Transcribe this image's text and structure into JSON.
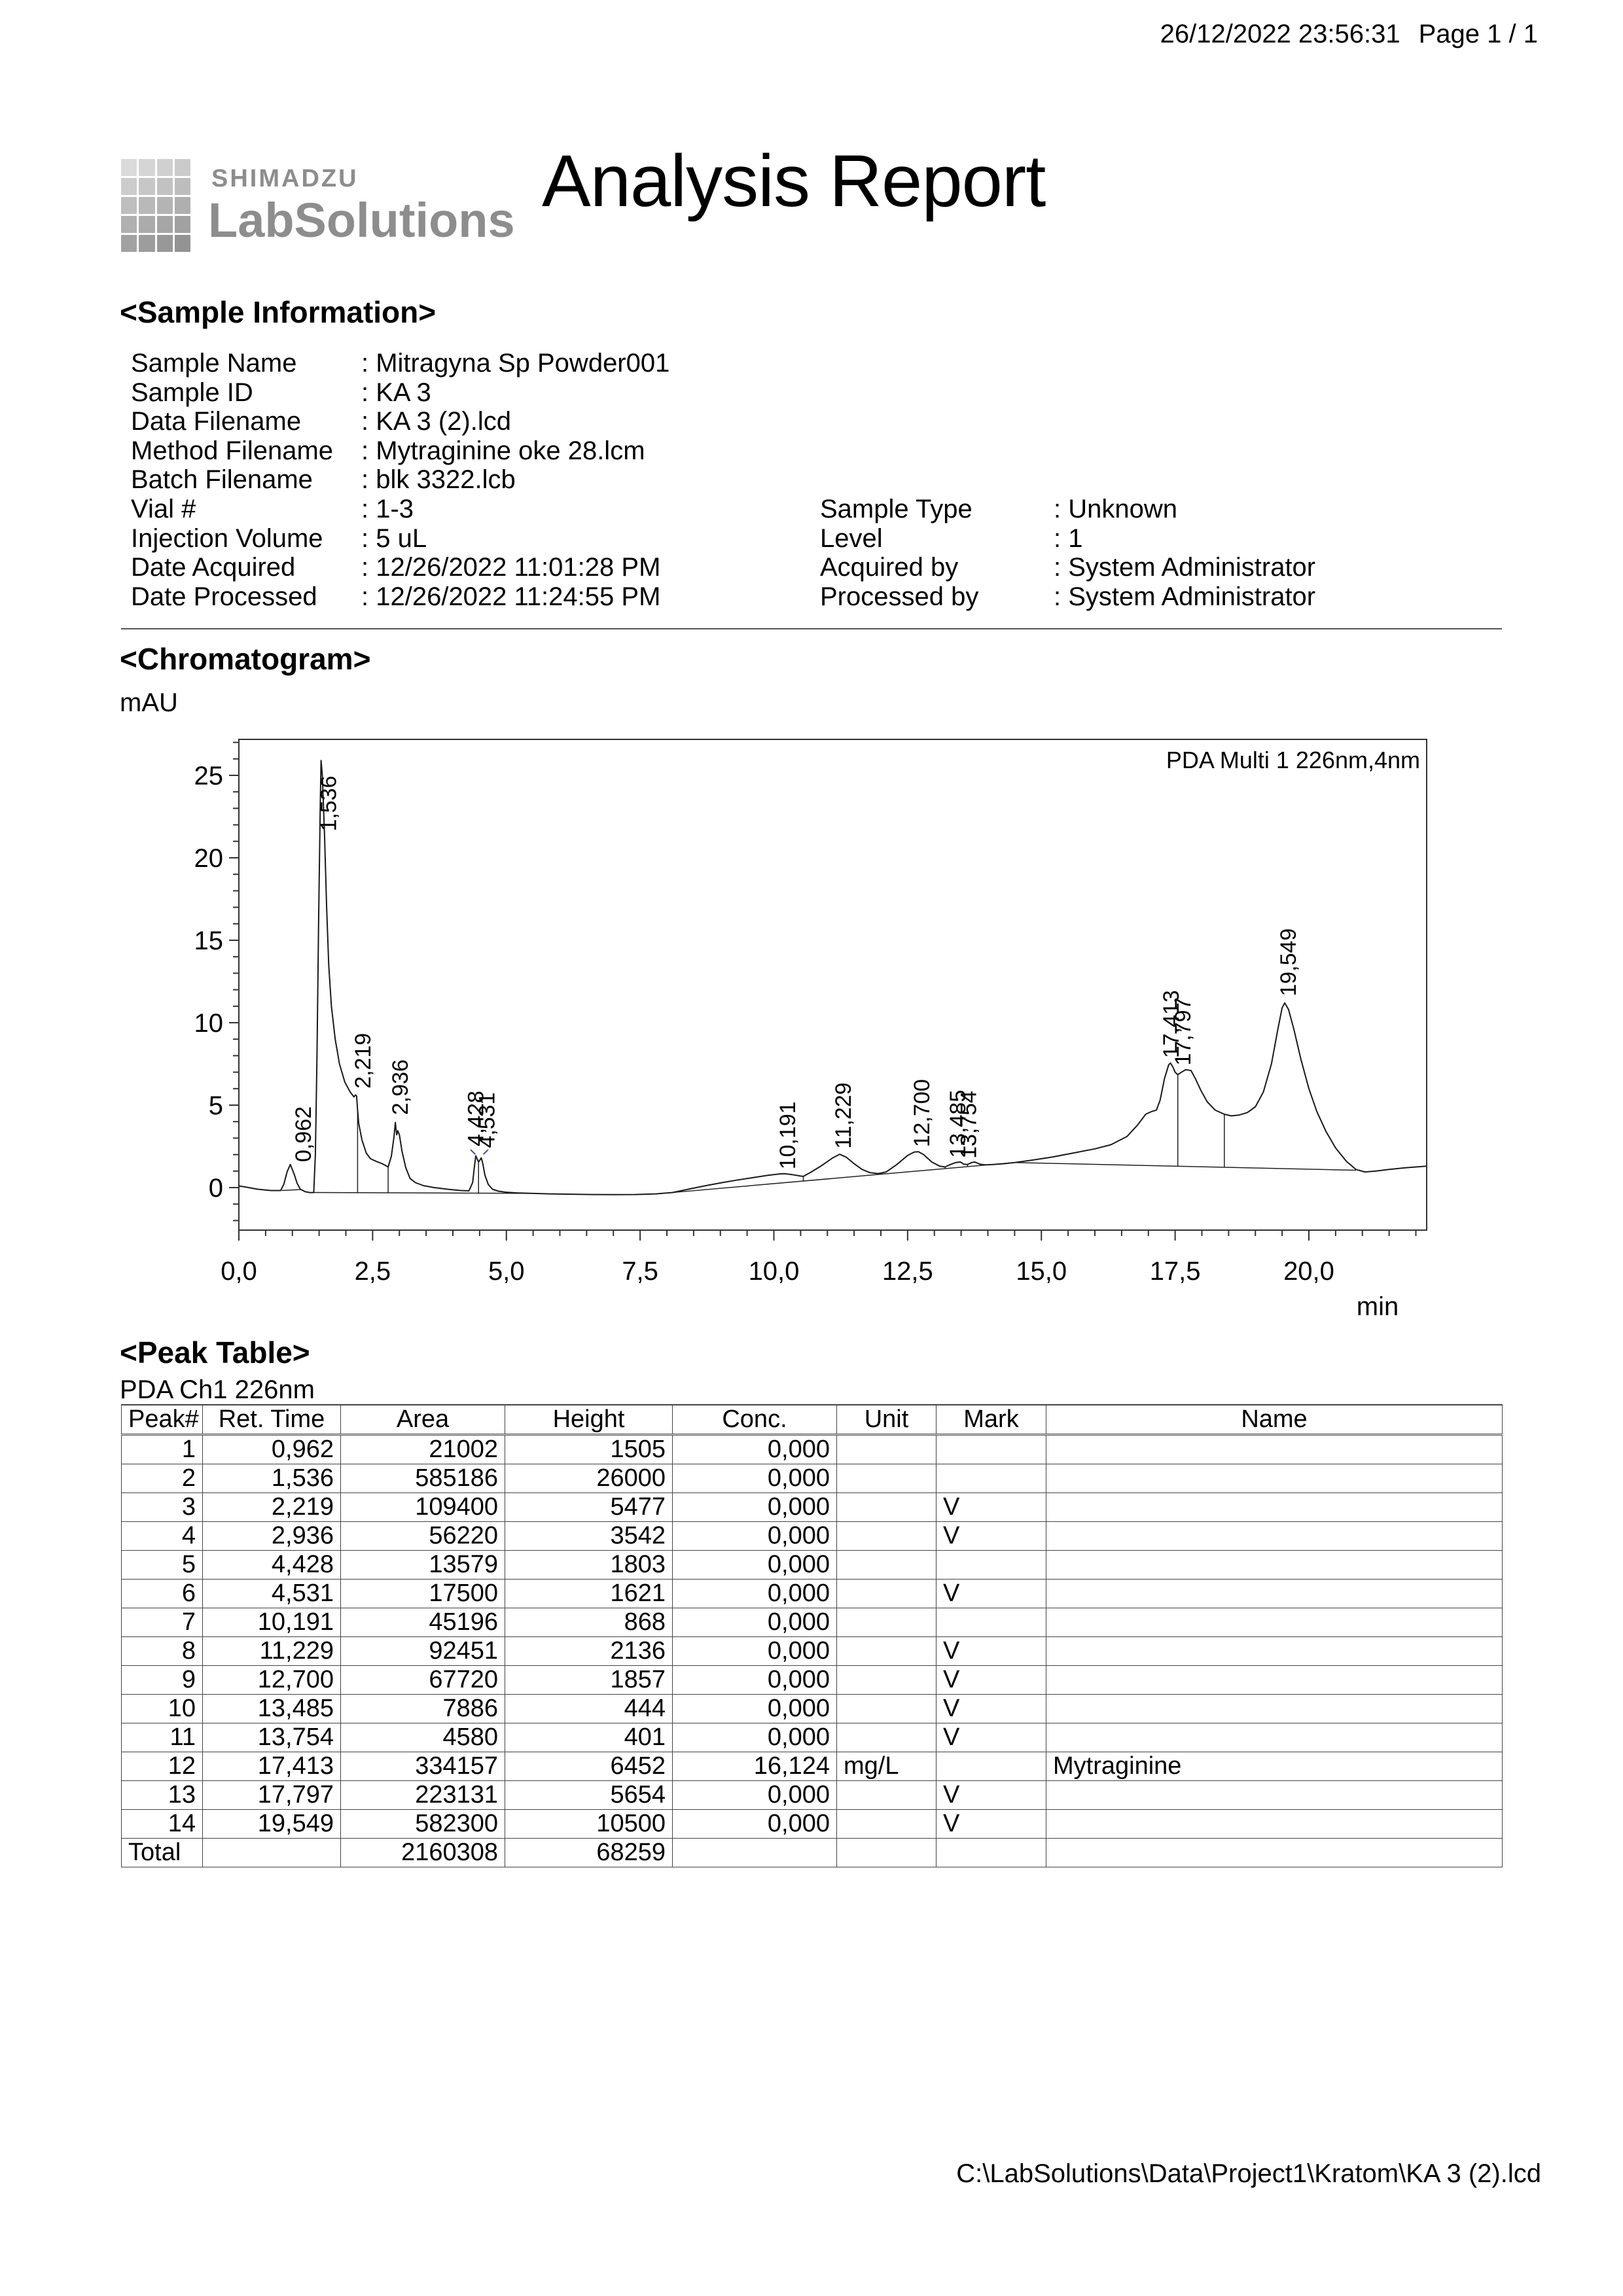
{
  "page": {
    "datetime": "26/12/2022 23:56:31",
    "page_label": "Page 1 / 1"
  },
  "brand": {
    "company": "SHIMADZU",
    "product": "LabSolutions",
    "title": "Analysis Report"
  },
  "sample_information": {
    "heading": "<Sample Information>",
    "left": [
      {
        "label": "Sample Name",
        "value": "Mitragyna Sp Powder001"
      },
      {
        "label": "Sample ID",
        "value": "KA 3"
      },
      {
        "label": "Data Filename",
        "value": "KA 3 (2).lcd"
      },
      {
        "label": "Method Filename",
        "value": "Mytraginine oke 28.lcm"
      },
      {
        "label": "Batch Filename",
        "value": "blk 3322.lcb"
      },
      {
        "label": "Vial #",
        "value": "1-3"
      },
      {
        "label": "Injection Volume",
        "value": "5 uL"
      },
      {
        "label": "Date Acquired",
        "value": "12/26/2022 11:01:28 PM"
      },
      {
        "label": "Date Processed",
        "value": "12/26/2022 11:24:55 PM"
      }
    ],
    "right": [
      {
        "label": "Sample Type",
        "value": "Unknown"
      },
      {
        "label": "Level",
        "value": "1"
      },
      {
        "label": "Acquired by",
        "value": "System Administrator"
      },
      {
        "label": "Processed by",
        "value": "System Administrator"
      }
    ]
  },
  "chromatogram": {
    "heading": "<Chromatogram>",
    "y_unit": "mAU",
    "x_unit": "min",
    "trace_label": "PDA Multi 1 226nm,4nm"
  },
  "chart_data": {
    "type": "line",
    "title": "PDA Multi 1 226nm,4nm",
    "xlabel": "min",
    "ylabel": "mAU",
    "xlim": [
      0,
      22.2
    ],
    "ylim": [
      -2.58,
      27.2
    ],
    "x_ticks": [
      {
        "t": 0,
        "label": "0,0"
      },
      {
        "t": 2.5,
        "label": "2,5"
      },
      {
        "t": 5,
        "label": "5,0"
      },
      {
        "t": 7.5,
        "label": "7,5"
      },
      {
        "t": 10,
        "label": "10,0"
      },
      {
        "t": 12.5,
        "label": "12,5"
      },
      {
        "t": 15,
        "label": "15,0"
      },
      {
        "t": 17.5,
        "label": "17,5"
      },
      {
        "t": 20,
        "label": "20,0"
      }
    ],
    "x_minor_step": 0.5,
    "y_ticks": [
      {
        "v": 0,
        "label": "0"
      },
      {
        "v": 5,
        "label": "5"
      },
      {
        "v": 10,
        "label": "10"
      },
      {
        "v": 15,
        "label": "15"
      },
      {
        "v": 20,
        "label": "20"
      },
      {
        "v": 25,
        "label": "25"
      }
    ],
    "y_minor_step": 1,
    "peaks": [
      {
        "ret_time": 0.962,
        "apex_mau": 1.4,
        "label": "0,962"
      },
      {
        "ret_time": 1.536,
        "apex_mau": 25.9,
        "label": "1,536"
      },
      {
        "ret_time": 2.219,
        "apex_mau": 5.5,
        "label": "2,219"
      },
      {
        "ret_time": 2.936,
        "apex_mau": 3.9,
        "label": "2,936"
      },
      {
        "ret_time": 4.428,
        "apex_mau": 1.93,
        "label": "4,428"
      },
      {
        "ret_time": 4.531,
        "apex_mau": 1.8,
        "label": "4,531"
      },
      {
        "ret_time": 10.191,
        "apex_mau": 0.84,
        "label": "10,191"
      },
      {
        "ret_time": 11.229,
        "apex_mau": 2.02,
        "label": "11,229"
      },
      {
        "ret_time": 12.7,
        "apex_mau": 2.18,
        "label": "12,700"
      },
      {
        "ret_time": 13.485,
        "apex_mau": 1.55,
        "label": "13,485"
      },
      {
        "ret_time": 13.754,
        "apex_mau": 1.55,
        "label": "13,754"
      },
      {
        "ret_time": 17.413,
        "apex_mau": 7.55,
        "label": "17,413"
      },
      {
        "ret_time": 17.797,
        "apex_mau": 7.1,
        "label": "17,797"
      },
      {
        "ret_time": 19.549,
        "apex_mau": 11.2,
        "label": "19,549"
      }
    ],
    "peak_labels": [
      {
        "t": 1.2,
        "v": 1.55,
        "text": "0,962"
      },
      {
        "t": 1.67,
        "v": 21.6,
        "text": "1,536"
      },
      {
        "t": 2.31,
        "v": 6.0,
        "text": "2,219"
      },
      {
        "t": 3.01,
        "v": 4.4,
        "text": "2,936"
      },
      {
        "t": 4.42,
        "v": 2.5,
        "text": "4,428"
      },
      {
        "t": 4.63,
        "v": 2.4,
        "text": "4,531"
      },
      {
        "t": 10.25,
        "v": 1.1,
        "text": "10,191"
      },
      {
        "t": 11.29,
        "v": 2.35,
        "text": "11,229"
      },
      {
        "t": 12.76,
        "v": 2.45,
        "text": "12,700"
      },
      {
        "t": 13.43,
        "v": 1.8,
        "text": "13,485"
      },
      {
        "t": 13.63,
        "v": 1.75,
        "text": "13,754"
      },
      {
        "t": 17.42,
        "v": 7.85,
        "text": "17,413"
      },
      {
        "t": 17.64,
        "v": 7.4,
        "text": "17,797"
      },
      {
        "t": 19.61,
        "v": 11.6,
        "text": "19,549"
      }
    ],
    "trace": [
      [
        0.0,
        0.1
      ],
      [
        0.15,
        0.02
      ],
      [
        0.35,
        -0.1
      ],
      [
        0.6,
        -0.18
      ],
      [
        0.78,
        -0.18
      ],
      [
        0.84,
        0.2
      ],
      [
        0.9,
        0.95
      ],
      [
        0.962,
        1.4
      ],
      [
        1.03,
        0.85
      ],
      [
        1.09,
        0.25
      ],
      [
        1.15,
        -0.1
      ],
      [
        1.24,
        -0.25
      ],
      [
        1.33,
        -0.3
      ],
      [
        1.4,
        -0.3
      ],
      [
        1.43,
        2.0
      ],
      [
        1.46,
        8.0
      ],
      [
        1.49,
        16.0
      ],
      [
        1.52,
        23.0
      ],
      [
        1.536,
        25.9
      ],
      [
        1.56,
        25.0
      ],
      [
        1.6,
        21.5
      ],
      [
        1.64,
        17.0
      ],
      [
        1.68,
        13.5
      ],
      [
        1.73,
        11.0
      ],
      [
        1.8,
        9.0
      ],
      [
        1.88,
        7.5
      ],
      [
        1.98,
        6.4
      ],
      [
        2.08,
        5.8
      ],
      [
        2.15,
        5.5
      ],
      [
        2.18,
        5.62
      ],
      [
        2.2,
        5.55
      ],
      [
        2.219,
        4.7
      ],
      [
        2.24,
        3.9
      ],
      [
        2.3,
        2.9
      ],
      [
        2.38,
        2.1
      ],
      [
        2.46,
        1.75
      ],
      [
        2.56,
        1.6
      ],
      [
        2.68,
        1.45
      ],
      [
        2.79,
        1.25
      ],
      [
        2.85,
        1.9
      ],
      [
        2.9,
        3.1
      ],
      [
        2.925,
        3.95
      ],
      [
        2.936,
        3.6
      ],
      [
        2.95,
        3.2
      ],
      [
        2.97,
        3.45
      ],
      [
        3.0,
        3.2
      ],
      [
        3.05,
        2.2
      ],
      [
        3.12,
        1.2
      ],
      [
        3.2,
        0.55
      ],
      [
        3.3,
        0.3
      ],
      [
        3.45,
        0.12
      ],
      [
        3.65,
        0.0
      ],
      [
        3.9,
        -0.1
      ],
      [
        4.15,
        -0.18
      ],
      [
        4.3,
        -0.2
      ],
      [
        4.37,
        0.3
      ],
      [
        4.4,
        1.2
      ],
      [
        4.428,
        1.93
      ],
      [
        4.46,
        1.7
      ],
      [
        4.48,
        1.55
      ],
      [
        4.51,
        1.7
      ],
      [
        4.531,
        1.8
      ],
      [
        4.56,
        1.45
      ],
      [
        4.6,
        0.75
      ],
      [
        4.66,
        0.2
      ],
      [
        4.74,
        -0.1
      ],
      [
        4.85,
        -0.22
      ],
      [
        5.0,
        -0.28
      ],
      [
        5.2,
        -0.32
      ],
      [
        5.45,
        -0.35
      ],
      [
        5.8,
        -0.38
      ],
      [
        6.2,
        -0.4
      ],
      [
        6.6,
        -0.42
      ],
      [
        7.0,
        -0.43
      ],
      [
        7.4,
        -0.42
      ],
      [
        7.8,
        -0.38
      ],
      [
        8.1,
        -0.3
      ],
      [
        8.4,
        -0.1
      ],
      [
        8.7,
        0.1
      ],
      [
        9.0,
        0.28
      ],
      [
        9.3,
        0.45
      ],
      [
        9.6,
        0.6
      ],
      [
        9.9,
        0.75
      ],
      [
        10.1,
        0.82
      ],
      [
        10.191,
        0.84
      ],
      [
        10.35,
        0.78
      ],
      [
        10.5,
        0.7
      ],
      [
        10.55,
        0.68
      ],
      [
        10.7,
        0.95
      ],
      [
        10.9,
        1.35
      ],
      [
        11.1,
        1.8
      ],
      [
        11.229,
        2.02
      ],
      [
        11.35,
        1.85
      ],
      [
        11.5,
        1.45
      ],
      [
        11.65,
        1.1
      ],
      [
        11.8,
        0.9
      ],
      [
        11.95,
        0.85
      ],
      [
        12.1,
        0.95
      ],
      [
        12.3,
        1.4
      ],
      [
        12.5,
        1.95
      ],
      [
        12.62,
        2.15
      ],
      [
        12.7,
        2.18
      ],
      [
        12.8,
        2.0
      ],
      [
        12.95,
        1.55
      ],
      [
        13.1,
        1.3
      ],
      [
        13.2,
        1.25
      ],
      [
        13.3,
        1.4
      ],
      [
        13.4,
        1.52
      ],
      [
        13.485,
        1.55
      ],
      [
        13.55,
        1.42
      ],
      [
        13.62,
        1.4
      ],
      [
        13.7,
        1.52
      ],
      [
        13.754,
        1.55
      ],
      [
        13.85,
        1.42
      ],
      [
        13.95,
        1.38
      ],
      [
        14.1,
        1.4
      ],
      [
        14.3,
        1.45
      ],
      [
        14.5,
        1.52
      ],
      [
        14.8,
        1.65
      ],
      [
        15.2,
        1.85
      ],
      [
        15.6,
        2.1
      ],
      [
        16.0,
        2.35
      ],
      [
        16.3,
        2.6
      ],
      [
        16.6,
        3.1
      ],
      [
        16.8,
        3.8
      ],
      [
        16.95,
        4.45
      ],
      [
        17.05,
        4.6
      ],
      [
        17.15,
        4.7
      ],
      [
        17.22,
        5.3
      ],
      [
        17.3,
        6.6
      ],
      [
        17.38,
        7.45
      ],
      [
        17.413,
        7.55
      ],
      [
        17.46,
        7.3
      ],
      [
        17.5,
        7.0
      ],
      [
        17.55,
        6.85
      ],
      [
        17.62,
        7.0
      ],
      [
        17.7,
        7.15
      ],
      [
        17.797,
        7.1
      ],
      [
        17.88,
        6.6
      ],
      [
        17.98,
        5.9
      ],
      [
        18.1,
        5.2
      ],
      [
        18.25,
        4.7
      ],
      [
        18.42,
        4.45
      ],
      [
        18.55,
        4.35
      ],
      [
        18.7,
        4.4
      ],
      [
        18.85,
        4.55
      ],
      [
        19.0,
        4.9
      ],
      [
        19.15,
        5.8
      ],
      [
        19.3,
        7.5
      ],
      [
        19.42,
        9.6
      ],
      [
        19.5,
        10.9
      ],
      [
        19.549,
        11.2
      ],
      [
        19.62,
        10.8
      ],
      [
        19.72,
        9.6
      ],
      [
        19.85,
        7.8
      ],
      [
        20.0,
        6.0
      ],
      [
        20.15,
        4.6
      ],
      [
        20.32,
        3.4
      ],
      [
        20.5,
        2.4
      ],
      [
        20.7,
        1.6
      ],
      [
        20.88,
        1.1
      ],
      [
        21.05,
        0.95
      ],
      [
        21.25,
        1.0
      ],
      [
        21.5,
        1.1
      ],
      [
        21.8,
        1.2
      ],
      [
        22.0,
        1.25
      ],
      [
        22.2,
        1.3
      ]
    ],
    "baselines": [
      [
        [
          0.8,
          -0.18
        ],
        [
          1.15,
          -0.12
        ]
      ],
      [
        [
          1.4,
          -0.3
        ],
        [
          5.45,
          -0.35
        ]
      ],
      [
        [
          8.1,
          -0.3
        ],
        [
          14.5,
          1.52
        ]
      ],
      [
        [
          14.5,
          1.52
        ],
        [
          20.88,
          1.05
        ]
      ]
    ],
    "drop_lines": [
      [
        2.219,
        4.7,
        -0.32
      ],
      [
        2.79,
        1.25,
        -0.33
      ],
      [
        4.48,
        1.55,
        -0.34
      ],
      [
        10.55,
        0.68,
        0.4
      ],
      [
        11.95,
        0.85,
        0.79
      ],
      [
        13.2,
        1.25,
        1.15
      ],
      [
        13.62,
        1.4,
        1.27
      ],
      [
        17.55,
        6.85,
        1.29
      ],
      [
        18.42,
        4.45,
        1.23
      ]
    ],
    "blue_marks": [
      [
        [
          4.33,
          2.3
        ],
        [
          4.42,
          2.02
        ]
      ],
      [
        [
          4.57,
          2.02
        ],
        [
          4.66,
          2.3
        ]
      ]
    ],
    "legend_position": "top-right",
    "grid": false,
    "line_color": "#1a1a1a",
    "marker_color": "#4747c8"
  },
  "peak_table": {
    "heading": "<Peak Table>",
    "channel": "PDA Ch1 226nm",
    "columns": [
      "Peak#",
      "Ret. Time",
      "Area",
      "Height",
      "Conc.",
      "Unit",
      "Mark",
      "Name"
    ],
    "rows": [
      [
        "1",
        "0,962",
        "21002",
        "1505",
        "0,000",
        "",
        "",
        ""
      ],
      [
        "2",
        "1,536",
        "585186",
        "26000",
        "0,000",
        "",
        "",
        ""
      ],
      [
        "3",
        "2,219",
        "109400",
        "5477",
        "0,000",
        "",
        "V",
        ""
      ],
      [
        "4",
        "2,936",
        "56220",
        "3542",
        "0,000",
        "",
        "V",
        ""
      ],
      [
        "5",
        "4,428",
        "13579",
        "1803",
        "0,000",
        "",
        "",
        ""
      ],
      [
        "6",
        "4,531",
        "17500",
        "1621",
        "0,000",
        "",
        "V",
        ""
      ],
      [
        "7",
        "10,191",
        "45196",
        "868",
        "0,000",
        "",
        "",
        ""
      ],
      [
        "8",
        "11,229",
        "92451",
        "2136",
        "0,000",
        "",
        "V",
        ""
      ],
      [
        "9",
        "12,700",
        "67720",
        "1857",
        "0,000",
        "",
        "V",
        ""
      ],
      [
        "10",
        "13,485",
        "7886",
        "444",
        "0,000",
        "",
        "V",
        ""
      ],
      [
        "11",
        "13,754",
        "4580",
        "401",
        "0,000",
        "",
        "V",
        ""
      ],
      [
        "12",
        "17,413",
        "334157",
        "6452",
        "16,124",
        "mg/L",
        "",
        "Mytraginine"
      ],
      [
        "13",
        "17,797",
        "223131",
        "5654",
        "0,000",
        "",
        "V",
        ""
      ],
      [
        "14",
        "19,549",
        "582300",
        "10500",
        "0,000",
        "",
        "V",
        ""
      ]
    ],
    "total_row": [
      "Total",
      "",
      "2160308",
      "68259",
      "",
      "",
      "",
      ""
    ]
  },
  "footer": {
    "path": "C:\\LabSolutions\\Data\\Project1\\Kratom\\KA 3 (2).lcd"
  }
}
